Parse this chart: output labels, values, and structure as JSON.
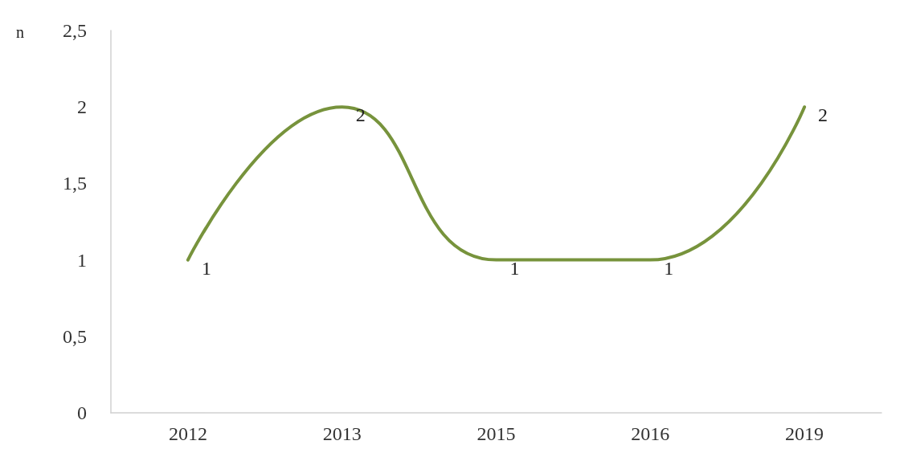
{
  "chart_data": {
    "type": "line",
    "ylabel": "n",
    "categories": [
      "2012",
      "2013",
      "2015",
      "2016",
      "2019"
    ],
    "series": [
      {
        "color": "#77933c",
        "values": [
          1,
          2,
          1,
          1,
          2
        ]
      }
    ],
    "ylim": [
      0,
      2.5
    ],
    "yticks": [
      0,
      {
        "value": 0.5,
        "label": "0,5"
      },
      1,
      {
        "value": 1.5,
        "label": "1,5"
      },
      2,
      {
        "value": 2.5,
        "label": "2,5"
      }
    ],
    "data_labels": true,
    "grid": false,
    "marker": "none",
    "line_style": "solid"
  }
}
